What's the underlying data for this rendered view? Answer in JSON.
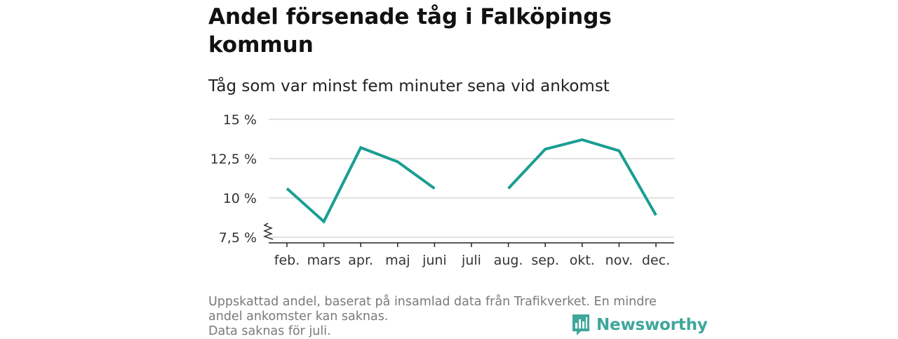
{
  "title": "Andel försenade tåg i Falköpings kommun",
  "subtitle": "Tåg som var minst fem minuter sena vid ankomst",
  "footer": {
    "note1": "Uppskattad andel, baserat på insamlad data från Trafikverket. En mindre andel ankomster kan saknas.",
    "note2": "Data saknas för juli."
  },
  "brand": {
    "name": "Newsworthy",
    "color": "#3ea79a",
    "icon": "newsworthy-logo-icon"
  },
  "colors": {
    "line": "#1a9e92",
    "grid": "#d9d9d9",
    "axis": "#222222"
  },
  "chart_data": {
    "type": "line",
    "categories": [
      "feb.",
      "mars",
      "apr.",
      "maj",
      "juni",
      "juli",
      "aug.",
      "sep.",
      "okt.",
      "nov.",
      "dec."
    ],
    "series": [
      {
        "values": [
          10.6,
          8.5,
          13.2,
          12.3,
          10.6,
          null,
          10.6,
          13.1,
          13.7,
          13.0,
          8.9
        ]
      }
    ],
    "yticks": [
      7.5,
      10,
      12.5,
      15
    ],
    "ytick_labels": [
      "7,5 %",
      "10 %",
      "12,5 %",
      "15 %"
    ],
    "ylim": [
      7.5,
      15
    ],
    "y_axis_break": true,
    "grid": true,
    "xlabel": "",
    "ylabel": ""
  }
}
